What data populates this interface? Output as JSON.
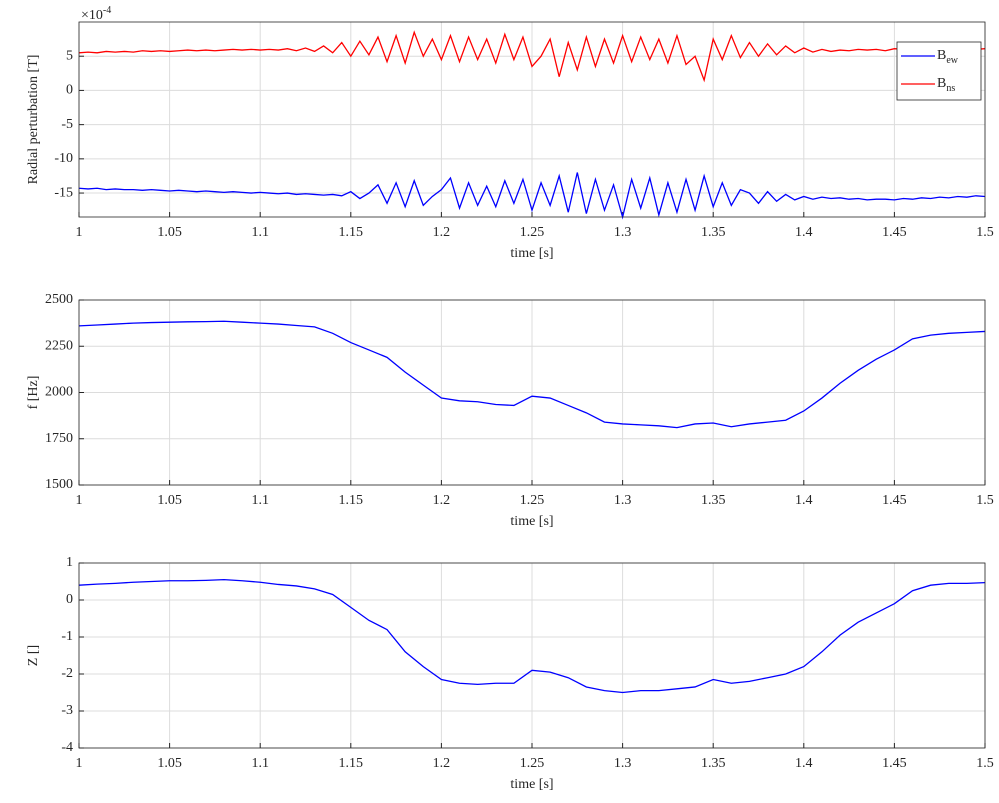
{
  "chart_data": [
    {
      "type": "line",
      "y_label": "Radial perturbation [T]",
      "x_label": "time [s]",
      "y_exponent": {
        "base": "×10",
        "exponent": "-4"
      },
      "x": [
        1,
        1.005,
        1.01,
        1.015,
        1.02,
        1.025,
        1.03,
        1.035,
        1.04,
        1.045,
        1.05,
        1.055,
        1.06,
        1.065,
        1.07,
        1.075,
        1.08,
        1.085,
        1.09,
        1.095,
        1.1,
        1.105,
        1.11,
        1.115,
        1.12,
        1.125,
        1.13,
        1.135,
        1.14,
        1.145,
        1.15,
        1.155,
        1.16,
        1.165,
        1.17,
        1.175,
        1.18,
        1.185,
        1.19,
        1.195,
        1.2,
        1.205,
        1.21,
        1.215,
        1.22,
        1.225,
        1.23,
        1.235,
        1.24,
        1.245,
        1.25,
        1.255,
        1.26,
        1.265,
        1.27,
        1.275,
        1.28,
        1.285,
        1.29,
        1.295,
        1.3,
        1.305,
        1.31,
        1.315,
        1.32,
        1.325,
        1.33,
        1.335,
        1.34,
        1.345,
        1.35,
        1.355,
        1.36,
        1.365,
        1.37,
        1.375,
        1.38,
        1.385,
        1.39,
        1.395,
        1.4,
        1.405,
        1.41,
        1.415,
        1.42,
        1.425,
        1.43,
        1.435,
        1.44,
        1.445,
        1.45,
        1.455,
        1.46,
        1.465,
        1.47,
        1.475,
        1.48,
        1.485,
        1.49,
        1.495,
        1.5
      ],
      "series": [
        {
          "name": "B",
          "name_subscript": "ew",
          "color": "#0000ff",
          "values": [
            -14.3,
            -14.4,
            -14.3,
            -14.5,
            -14.4,
            -14.5,
            -14.5,
            -14.6,
            -14.5,
            -14.6,
            -14.7,
            -14.6,
            -14.7,
            -14.8,
            -14.7,
            -14.8,
            -14.9,
            -14.8,
            -14.9,
            -15.0,
            -14.9,
            -15.0,
            -15.1,
            -15.0,
            -15.2,
            -15.1,
            -15.2,
            -15.3,
            -15.2,
            -15.4,
            -14.8,
            -15.8,
            -15.0,
            -13.8,
            -16.5,
            -13.5,
            -17.0,
            -13.2,
            -16.8,
            -15.5,
            -14.5,
            -12.8,
            -17.2,
            -13.5,
            -16.8,
            -14.0,
            -17.0,
            -13.2,
            -16.5,
            -13.0,
            -17.5,
            -13.5,
            -16.8,
            -12.5,
            -17.8,
            -12.0,
            -18.0,
            -13.0,
            -17.5,
            -13.8,
            -18.5,
            -13.0,
            -17.2,
            -12.8,
            -18.2,
            -13.5,
            -17.8,
            -13.0,
            -17.5,
            -12.5,
            -17.0,
            -13.5,
            -16.8,
            -14.5,
            -15.0,
            -16.5,
            -14.8,
            -16.2,
            -15.2,
            -16.0,
            -15.5,
            -15.9,
            -15.6,
            -15.8,
            -15.7,
            -15.9,
            -15.8,
            -16.0,
            -15.9,
            -15.9,
            -16.0,
            -15.8,
            -15.9,
            -15.7,
            -15.8,
            -15.6,
            -15.7,
            -15.5,
            -15.6,
            -15.4,
            -15.5
          ]
        },
        {
          "name": "B",
          "name_subscript": "ns",
          "color": "#ff0000",
          "values": [
            5.5,
            5.6,
            5.5,
            5.7,
            5.6,
            5.7,
            5.6,
            5.8,
            5.7,
            5.8,
            5.7,
            5.8,
            5.9,
            5.8,
            5.9,
            5.8,
            5.9,
            6.0,
            5.9,
            6.0,
            5.9,
            6.0,
            5.9,
            6.1,
            5.8,
            6.2,
            5.7,
            6.5,
            5.5,
            7.0,
            5.0,
            7.2,
            5.2,
            7.8,
            4.2,
            8.0,
            4.0,
            8.5,
            5.0,
            7.5,
            4.5,
            8.0,
            4.2,
            7.8,
            4.5,
            7.5,
            4.0,
            8.2,
            4.5,
            7.8,
            3.5,
            5.0,
            7.5,
            2.0,
            7.0,
            3.0,
            7.8,
            3.5,
            7.5,
            4.0,
            8.0,
            4.2,
            7.8,
            4.5,
            7.5,
            4.0,
            8.0,
            3.8,
            5.0,
            1.5,
            7.5,
            4.5,
            8.0,
            4.8,
            7.0,
            5.0,
            6.8,
            5.2,
            6.5,
            5.5,
            6.2,
            5.6,
            6.0,
            5.7,
            5.9,
            5.8,
            6.0,
            5.9,
            6.0,
            5.8,
            6.1,
            6.0,
            6.2,
            6.1,
            6.0,
            6.2,
            6.3,
            6.1,
            6.2,
            6.0,
            6.1
          ]
        }
      ],
      "xlim": [
        1,
        1.5
      ],
      "xticks": [
        1,
        1.05,
        1.1,
        1.15,
        1.2,
        1.25,
        1.3,
        1.35,
        1.4,
        1.45,
        1.5
      ],
      "ylim": [
        -18.5,
        10
      ],
      "yticks": [
        -15,
        -10,
        -5,
        0,
        5
      ],
      "grid": true,
      "legend": "upper right"
    },
    {
      "type": "line",
      "y_label": "f [Hz]",
      "x_label": "time [s]",
      "x": [
        1,
        1.01,
        1.02,
        1.03,
        1.04,
        1.05,
        1.06,
        1.07,
        1.08,
        1.09,
        1.1,
        1.11,
        1.12,
        1.13,
        1.14,
        1.15,
        1.16,
        1.17,
        1.18,
        1.19,
        1.2,
        1.21,
        1.22,
        1.23,
        1.24,
        1.25,
        1.26,
        1.27,
        1.28,
        1.29,
        1.3,
        1.31,
        1.32,
        1.33,
        1.34,
        1.35,
        1.36,
        1.37,
        1.38,
        1.39,
        1.4,
        1.41,
        1.42,
        1.43,
        1.44,
        1.45,
        1.46,
        1.47,
        1.48,
        1.49,
        1.5
      ],
      "series": [
        {
          "color": "#0000ff",
          "values": [
            2360,
            2365,
            2370,
            2375,
            2378,
            2380,
            2382,
            2383,
            2385,
            2380,
            2375,
            2370,
            2362,
            2355,
            2320,
            2270,
            2230,
            2190,
            2110,
            2040,
            1970,
            1955,
            1950,
            1935,
            1930,
            1980,
            1970,
            1930,
            1890,
            1840,
            1830,
            1825,
            1820,
            1810,
            1830,
            1835,
            1815,
            1830,
            1840,
            1850,
            1900,
            1970,
            2050,
            2120,
            2180,
            2230,
            2290,
            2310,
            2320,
            2325,
            2330
          ]
        }
      ],
      "xlim": [
        1,
        1.5
      ],
      "xticks": [
        1,
        1.05,
        1.1,
        1.15,
        1.2,
        1.25,
        1.3,
        1.35,
        1.4,
        1.45,
        1.5
      ],
      "ylim": [
        1500,
        2500
      ],
      "yticks": [
        1500,
        1750,
        2000,
        2250,
        2500
      ],
      "grid": true
    },
    {
      "type": "line",
      "y_label": "Z []",
      "x_label": "time [s]",
      "x": [
        1,
        1.01,
        1.02,
        1.03,
        1.04,
        1.05,
        1.06,
        1.07,
        1.08,
        1.09,
        1.1,
        1.11,
        1.12,
        1.13,
        1.14,
        1.15,
        1.16,
        1.17,
        1.18,
        1.19,
        1.2,
        1.21,
        1.22,
        1.23,
        1.24,
        1.25,
        1.26,
        1.27,
        1.28,
        1.29,
        1.3,
        1.31,
        1.32,
        1.33,
        1.34,
        1.35,
        1.36,
        1.37,
        1.38,
        1.39,
        1.4,
        1.41,
        1.42,
        1.43,
        1.44,
        1.45,
        1.46,
        1.47,
        1.48,
        1.49,
        1.5
      ],
      "series": [
        {
          "color": "#0000ff",
          "values": [
            0.4,
            0.43,
            0.45,
            0.48,
            0.5,
            0.52,
            0.52,
            0.53,
            0.55,
            0.52,
            0.48,
            0.42,
            0.38,
            0.3,
            0.15,
            -0.2,
            -0.55,
            -0.8,
            -1.4,
            -1.8,
            -2.15,
            -2.25,
            -2.28,
            -2.25,
            -2.25,
            -1.9,
            -1.95,
            -2.1,
            -2.35,
            -2.45,
            -2.5,
            -2.45,
            -2.45,
            -2.4,
            -2.35,
            -2.15,
            -2.25,
            -2.2,
            -2.1,
            -2.0,
            -1.8,
            -1.4,
            -0.95,
            -0.6,
            -0.35,
            -0.1,
            0.25,
            0.4,
            0.45,
            0.45,
            0.47
          ]
        }
      ],
      "xlim": [
        1,
        1.5
      ],
      "xticks": [
        1,
        1.05,
        1.1,
        1.15,
        1.2,
        1.25,
        1.3,
        1.35,
        1.4,
        1.45,
        1.5
      ],
      "ylim": [
        -4,
        1
      ],
      "yticks": [
        -4,
        -3,
        -2,
        -1,
        0,
        1
      ],
      "grid": true
    }
  ]
}
